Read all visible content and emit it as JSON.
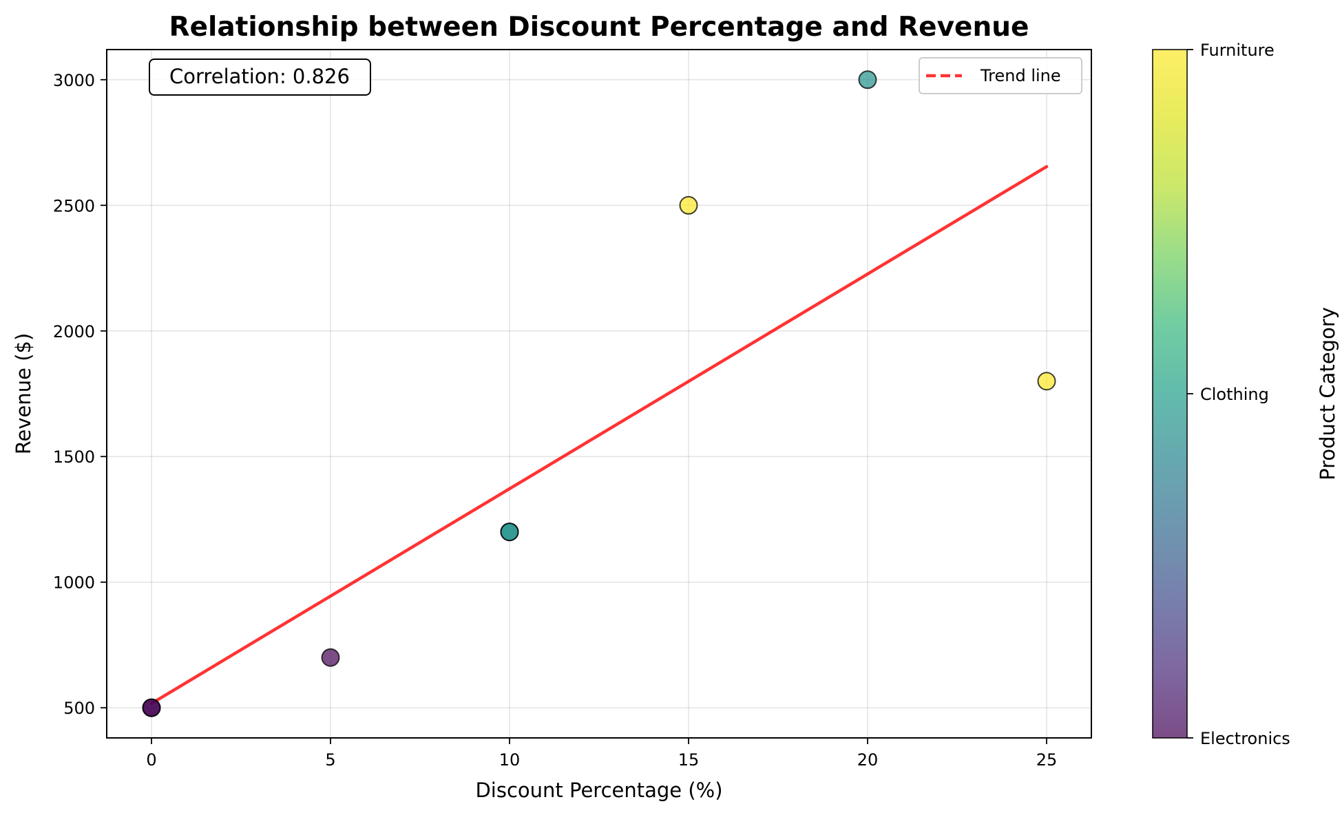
{
  "chart_data": {
    "type": "scatter",
    "title": "Relationship between Discount Percentage and Revenue",
    "xlabel": "Discount Percentage (%)",
    "ylabel": "Revenue ($)",
    "xlim": [
      -1.25,
      26.25
    ],
    "ylim": [
      380,
      3120
    ],
    "xticks": [
      0,
      5,
      10,
      15,
      20,
      25
    ],
    "yticks": [
      500,
      1000,
      1500,
      2000,
      2500,
      3000
    ],
    "grid": true,
    "points": [
      {
        "x": 0,
        "y": 500,
        "category": "Electronics",
        "color": "#440154"
      },
      {
        "x": 0,
        "y": 500,
        "category": "Electronics",
        "color": "#440154"
      },
      {
        "x": 5,
        "y": 700,
        "category": "Electronics",
        "color": "#440154"
      },
      {
        "x": 10,
        "y": 1200,
        "category": "Clothing",
        "color": "#21918c"
      },
      {
        "x": 10,
        "y": 1200,
        "category": "Clothing",
        "color": "#21918c"
      },
      {
        "x": 15,
        "y": 2500,
        "category": "Furniture",
        "color": "#fde725"
      },
      {
        "x": 20,
        "y": 3000,
        "category": "Clothing",
        "color": "#21918c"
      },
      {
        "x": 25,
        "y": 1800,
        "category": "Furniture",
        "color": "#fde725"
      }
    ],
    "trend_line": {
      "label": "Trend line",
      "color": "#ff0000",
      "x": [
        0,
        25
      ],
      "y": [
        517,
        2654
      ]
    },
    "legend": {
      "position": "top-right",
      "entries": [
        "Trend line"
      ]
    },
    "annotation": {
      "text": "Correlation: 0.826",
      "position": "top-left"
    },
    "colorbar": {
      "label": "Product Category",
      "colormap": "viridis",
      "ticks": [
        {
          "label": "Furniture",
          "value": 1
        },
        {
          "label": "Clothing",
          "value": 0.5
        },
        {
          "label": "Electronics",
          "value": 0
        }
      ]
    }
  }
}
